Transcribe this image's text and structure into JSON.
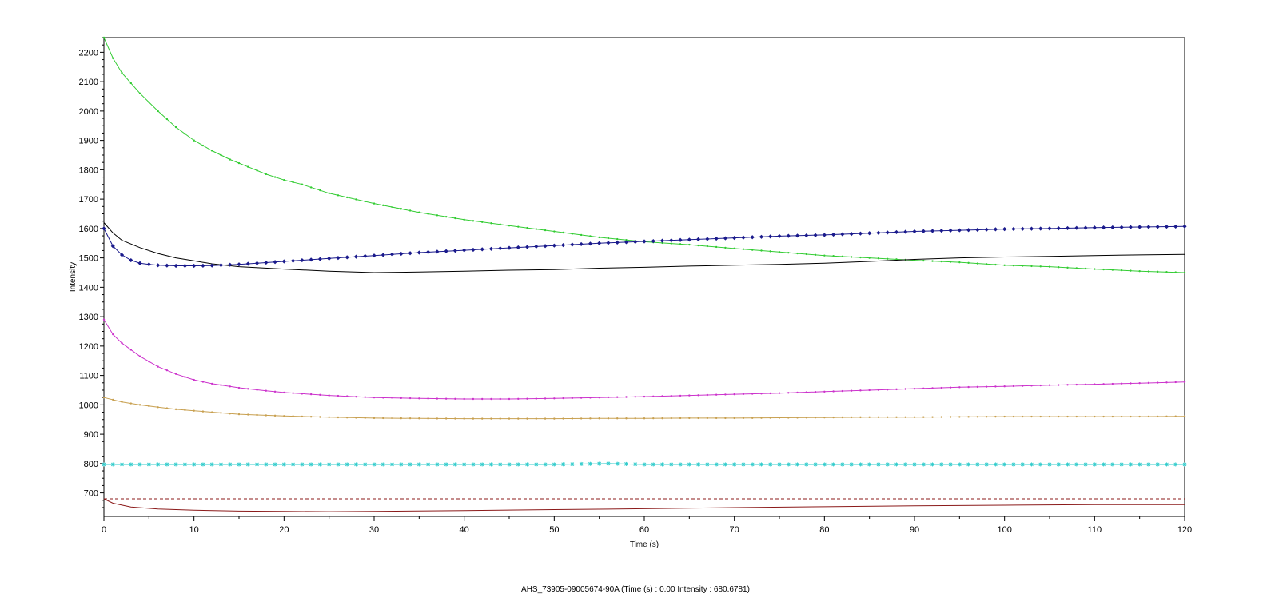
{
  "status_text": "AHS_73905-09005674-90A (Time (s) : 0.00  Intensity : 680.6781)",
  "chart_data": {
    "type": "line",
    "xlabel": "Time (s)",
    "ylabel": "Intensity",
    "xlim": [
      0,
      120
    ],
    "ylim": [
      620,
      2250
    ],
    "x_ticks": [
      0,
      10,
      20,
      30,
      40,
      50,
      60,
      70,
      80,
      90,
      100,
      110,
      120
    ],
    "y_ticks": [
      700,
      800,
      900,
      1000,
      1100,
      1200,
      1300,
      1400,
      1500,
      1600,
      1700,
      1800,
      1900,
      2000,
      2100,
      2200
    ],
    "grid": false,
    "legend": "none",
    "series": [
      {
        "color": "#33cc33",
        "marker": "dot",
        "x": [
          0,
          1,
          2,
          4,
          6,
          8,
          10,
          12,
          14,
          16,
          18,
          20,
          22,
          25,
          30,
          35,
          40,
          45,
          50,
          55,
          60,
          65,
          70,
          75,
          80,
          85,
          90,
          95,
          100,
          105,
          110,
          115,
          120
        ],
        "y": [
          2250,
          2180,
          2130,
          2060,
          2000,
          1945,
          1900,
          1865,
          1835,
          1810,
          1785,
          1765,
          1750,
          1720,
          1685,
          1655,
          1630,
          1610,
          1590,
          1570,
          1555,
          1545,
          1532,
          1520,
          1508,
          1500,
          1492,
          1485,
          1475,
          1470,
          1462,
          1455,
          1450
        ]
      },
      {
        "color": "#000000",
        "marker": "none",
        "x": [
          0,
          1,
          2,
          4,
          6,
          8,
          10,
          12,
          15,
          20,
          25,
          30,
          35,
          40,
          45,
          50,
          55,
          60,
          65,
          70,
          75,
          80,
          85,
          90,
          95,
          100,
          105,
          110,
          115,
          120
        ],
        "y": [
          1620,
          1585,
          1560,
          1535,
          1515,
          1500,
          1490,
          1480,
          1470,
          1462,
          1455,
          1450,
          1452,
          1455,
          1458,
          1460,
          1465,
          1468,
          1472,
          1475,
          1478,
          1482,
          1488,
          1495,
          1500,
          1503,
          1505,
          1508,
          1510,
          1512
        ]
      },
      {
        "color": "#1a1a8c",
        "marker": "diamond",
        "x": [
          0,
          1,
          2,
          3,
          4,
          5,
          6,
          8,
          10,
          12,
          15,
          20,
          25,
          30,
          35,
          40,
          45,
          50,
          55,
          60,
          65,
          70,
          75,
          80,
          85,
          90,
          95,
          100,
          105,
          110,
          115,
          120
        ],
        "y": [
          1600,
          1540,
          1510,
          1492,
          1482,
          1478,
          1475,
          1473,
          1473,
          1474,
          1478,
          1488,
          1498,
          1508,
          1518,
          1526,
          1534,
          1542,
          1550,
          1556,
          1562,
          1568,
          1574,
          1578,
          1584,
          1590,
          1594,
          1598,
          1600,
          1603,
          1605,
          1607
        ]
      },
      {
        "color": "#cc33cc",
        "marker": "dot",
        "x": [
          0,
          1,
          2,
          4,
          6,
          8,
          10,
          12,
          15,
          18,
          20,
          25,
          30,
          35,
          40,
          45,
          50,
          55,
          60,
          65,
          70,
          75,
          80,
          85,
          90,
          95,
          100,
          105,
          110,
          115,
          120
        ],
        "y": [
          1290,
          1240,
          1210,
          1165,
          1130,
          1105,
          1085,
          1072,
          1058,
          1048,
          1042,
          1032,
          1025,
          1022,
          1020,
          1020,
          1022,
          1025,
          1028,
          1032,
          1036,
          1040,
          1045,
          1050,
          1055,
          1060,
          1063,
          1067,
          1070,
          1074,
          1078
        ]
      },
      {
        "color": "#c8a050",
        "marker": "dot",
        "x": [
          0,
          2,
          4,
          6,
          8,
          10,
          12,
          15,
          20,
          25,
          30,
          35,
          40,
          45,
          50,
          55,
          60,
          65,
          70,
          75,
          80,
          85,
          90,
          95,
          100,
          105,
          110,
          115,
          120
        ],
        "y": [
          1025,
          1010,
          1000,
          992,
          985,
          980,
          975,
          968,
          962,
          958,
          955,
          954,
          953,
          953,
          953,
          954,
          954,
          955,
          955,
          956,
          957,
          958,
          958,
          959,
          960,
          960,
          960,
          960,
          961
        ]
      },
      {
        "color": "#33cccc",
        "marker": "star",
        "x": [
          0,
          10,
          20,
          30,
          40,
          50,
          56,
          60,
          70,
          80,
          90,
          100,
          110,
          120
        ],
        "y": [
          797,
          797,
          797,
          797,
          797,
          797,
          800,
          797,
          797,
          797,
          797,
          797,
          797,
          797
        ]
      },
      {
        "color": "#8b1a1a",
        "marker": "none",
        "style": "dashed",
        "x": [
          0,
          120
        ],
        "y": [
          680,
          680
        ]
      },
      {
        "color": "#8b1a1a",
        "marker": "none",
        "x": [
          0,
          1,
          3,
          6,
          10,
          15,
          20,
          25,
          30,
          40,
          50,
          60,
          70,
          80,
          90,
          100,
          110,
          120
        ],
        "y": [
          680,
          665,
          652,
          645,
          641,
          638,
          637,
          636,
          637,
          640,
          643,
          646,
          650,
          653,
          656,
          658,
          660,
          660
        ]
      }
    ]
  }
}
